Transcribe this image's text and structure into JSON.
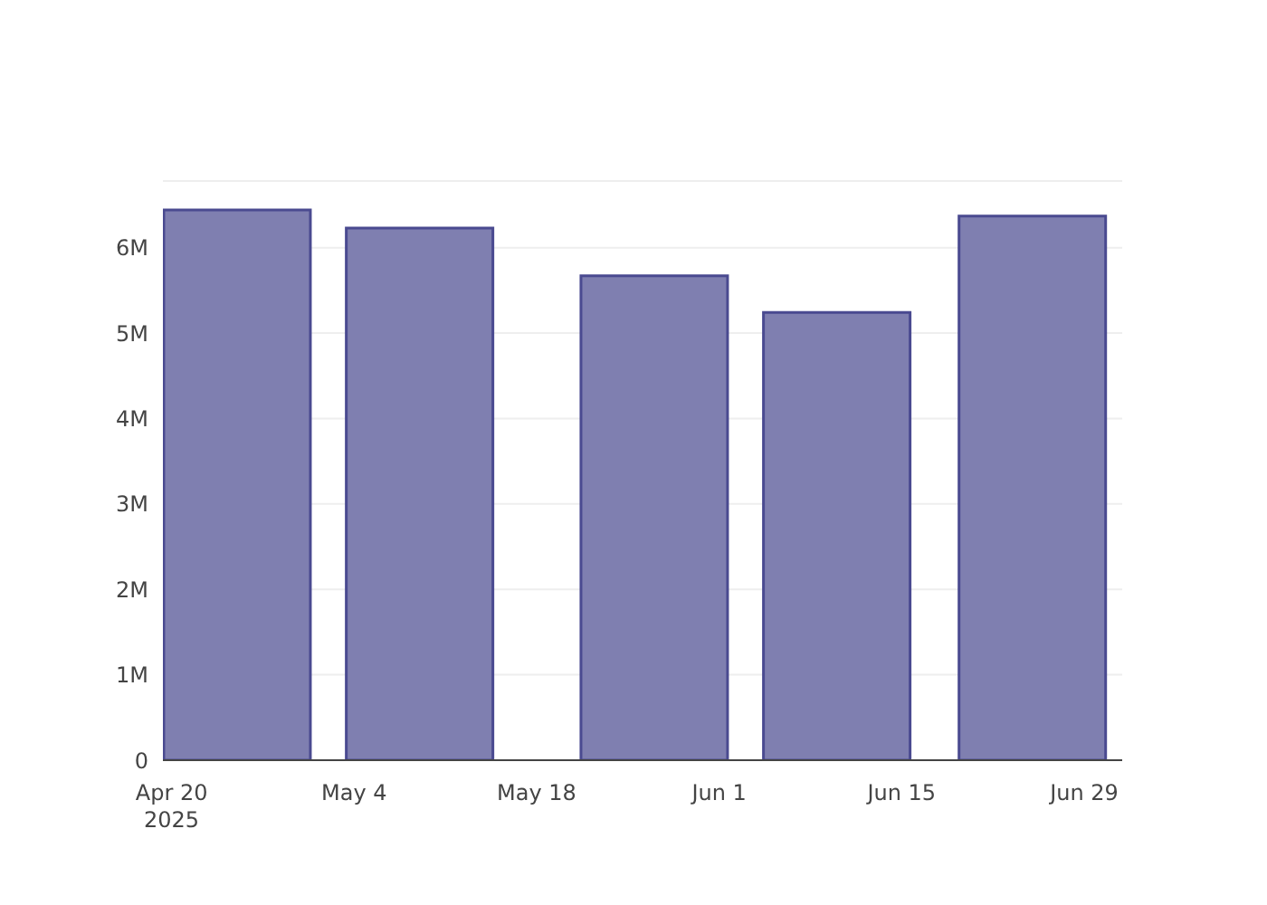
{
  "chart_data": {
    "type": "bar",
    "x": [
      "2025-04-25",
      "2025-05-09",
      "2025-05-27",
      "2025-06-10",
      "2025-06-25"
    ],
    "series": [
      {
        "color": "#7f7fb0",
        "values": [
          6440000,
          6230000,
          5670000,
          5240000,
          6370000
        ]
      }
    ],
    "xlim": [
      "2025-04-19T08:00",
      "2025-07-01T22:00"
    ],
    "xticks": [
      {
        "value": "2025-04-20",
        "label": "Apr 20\n2025"
      },
      {
        "value": "2025-05-04",
        "label": "May 4"
      },
      {
        "value": "2025-05-18",
        "label": "May 18"
      },
      {
        "value": "2025-06-01",
        "label": "Jun 1"
      },
      {
        "value": "2025-06-15",
        "label": "Jun 15"
      },
      {
        "value": "2025-06-29",
        "label": "Jun 29"
      }
    ],
    "ylim": [
      0,
      6780000
    ],
    "yticks": [
      0,
      {
        "value": 1000000,
        "label": "1M"
      },
      {
        "value": 2000000,
        "label": "2M"
      },
      {
        "value": 3000000,
        "label": "3M"
      },
      {
        "value": 4000000,
        "label": "4M"
      },
      {
        "value": 5000000,
        "label": "5M"
      },
      {
        "value": 6000000,
        "label": "6M"
      }
    ],
    "grid": "y"
  }
}
